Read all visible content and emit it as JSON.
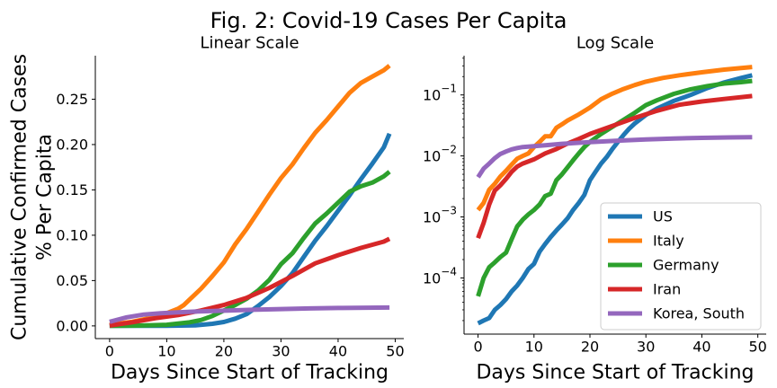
{
  "figure": {
    "title": "Fig. 2: Covid-19 Cases Per Capita"
  },
  "chart_data": [
    {
      "type": "line",
      "title": "Linear Scale",
      "xlabel": "Days Since Start of Tracking",
      "ylabel": [
        "Cumulative Confirmed Cases",
        "% Per Capita"
      ],
      "xlim": [
        -2.5,
        51.5
      ],
      "ylim": [
        -0.014,
        0.298
      ],
      "yscale": "linear",
      "xticks": [
        0,
        10,
        20,
        30,
        40,
        50
      ],
      "xtick_labels": [
        "0",
        "10",
        "20",
        "30",
        "40",
        "50"
      ],
      "yticks": [
        0,
        0.05,
        0.1,
        0.15,
        0.2,
        0.25
      ],
      "ytick_labels": [
        "0.00",
        "0.05",
        "0.10",
        "0.15",
        "0.20",
        "0.25"
      ],
      "grid": false,
      "series": [
        {
          "name": "US",
          "color": "#1f77b4",
          "x": [
            0,
            5,
            10,
            15,
            18,
            20,
            22,
            24,
            26,
            28,
            30,
            32,
            34,
            36,
            38,
            40,
            42,
            44,
            46,
            48,
            49
          ],
          "values": [
            2e-05,
            3e-05,
            0.0001,
            0.0007,
            0.0023,
            0.0043,
            0.008,
            0.013,
            0.022,
            0.032,
            0.044,
            0.058,
            0.076,
            0.094,
            0.11,
            0.127,
            0.144,
            0.162,
            0.179,
            0.197,
            0.212
          ]
        },
        {
          "name": "Italy",
          "color": "#ff7f0e",
          "x": [
            0,
            4,
            8,
            10,
            12,
            13,
            14,
            16,
            18,
            20,
            22,
            24,
            26,
            28,
            30,
            32,
            34,
            36,
            38,
            40,
            42,
            44,
            46,
            48,
            49
          ],
          "values": [
            0.0013,
            0.0046,
            0.01,
            0.014,
            0.019,
            0.023,
            0.029,
            0.041,
            0.055,
            0.07,
            0.09,
            0.107,
            0.126,
            0.145,
            0.163,
            0.178,
            0.196,
            0.213,
            0.227,
            0.242,
            0.257,
            0.268,
            0.275,
            0.282,
            0.287
          ]
        },
        {
          "name": "Germany",
          "color": "#2ca02c",
          "x": [
            0,
            5,
            10,
            14,
            16,
            18,
            20,
            22,
            24,
            26,
            28,
            30,
            32,
            34,
            36,
            38,
            40,
            42,
            44,
            46,
            48,
            49
          ],
          "values": [
            5e-05,
            0.0004,
            0.0013,
            0.004,
            0.0065,
            0.011,
            0.017,
            0.023,
            0.03,
            0.039,
            0.051,
            0.068,
            0.08,
            0.097,
            0.113,
            0.124,
            0.136,
            0.148,
            0.154,
            0.158,
            0.165,
            0.17
          ]
        },
        {
          "name": "Iran",
          "color": "#d62728",
          "x": [
            0,
            4,
            8,
            12,
            16,
            20,
            24,
            28,
            32,
            36,
            40,
            44,
            48,
            49
          ],
          "values": [
            0.0004,
            0.004,
            0.0085,
            0.012,
            0.017,
            0.023,
            0.031,
            0.042,
            0.055,
            0.069,
            0.078,
            0.086,
            0.093,
            0.096
          ]
        },
        {
          "name": "Korea, South",
          "color": "#9467bd",
          "x": [
            0,
            3,
            6,
            9,
            12,
            15,
            20,
            25,
            30,
            35,
            40,
            45,
            49
          ],
          "values": [
            0.0045,
            0.0095,
            0.0125,
            0.014,
            0.015,
            0.0158,
            0.0168,
            0.0178,
            0.0186,
            0.0193,
            0.0198,
            0.0201,
            0.0203
          ]
        }
      ]
    },
    {
      "type": "line",
      "title": "Log Scale",
      "xlabel": "Days Since Start of Tracking",
      "yscale": "log",
      "xlim": [
        -2.5,
        51.5
      ],
      "ylim": [
        1.2e-05,
        0.44
      ],
      "xticks": [
        0,
        10,
        20,
        30,
        40,
        50
      ],
      "xtick_labels": [
        "0",
        "10",
        "20",
        "30",
        "40",
        "50"
      ],
      "yticks": [
        0.0001,
        0.001,
        0.01,
        0.1
      ],
      "ytick_labels": [
        [
          "10",
          "−4"
        ],
        [
          "10",
          "−3"
        ],
        [
          "10",
          "−2"
        ],
        [
          "10",
          "−1"
        ]
      ],
      "grid": false,
      "legend": "lower-right",
      "series": [
        {
          "name": "US",
          "color": "#1f77b4",
          "x": [
            0,
            1,
            2,
            3,
            4,
            5,
            6,
            7,
            8,
            9,
            10,
            11,
            12,
            13,
            14,
            15,
            16,
            17,
            18,
            19,
            20,
            21,
            22,
            23,
            24,
            25,
            26,
            27,
            28,
            30,
            32,
            35,
            38,
            41,
            44,
            47,
            49
          ],
          "values": [
            1.8e-05,
            2e-05,
            2.2e-05,
            3e-05,
            3.6e-05,
            4.5e-05,
            6e-05,
            7.5e-05,
            0.0001,
            0.00014,
            0.00017,
            0.00027,
            0.00036,
            0.00047,
            0.0006,
            0.00075,
            0.00095,
            0.0013,
            0.0017,
            0.0023,
            0.004,
            0.0055,
            0.0075,
            0.0096,
            0.013,
            0.017,
            0.022,
            0.028,
            0.034,
            0.047,
            0.06,
            0.08,
            0.1,
            0.13,
            0.16,
            0.19,
            0.21
          ]
        },
        {
          "name": "Italy",
          "color": "#ff7f0e",
          "x": [
            0,
            1,
            2,
            3,
            4,
            5,
            6,
            7,
            8,
            9,
            10,
            11,
            12,
            13,
            14,
            15,
            16,
            18,
            20,
            22,
            24,
            26,
            28,
            30,
            33,
            36,
            40,
            44,
            49
          ],
          "values": [
            0.0013,
            0.0017,
            0.0028,
            0.0035,
            0.0046,
            0.0057,
            0.0072,
            0.009,
            0.01,
            0.011,
            0.014,
            0.017,
            0.021,
            0.021,
            0.029,
            0.033,
            0.038,
            0.048,
            0.062,
            0.085,
            0.105,
            0.125,
            0.145,
            0.165,
            0.19,
            0.21,
            0.235,
            0.26,
            0.287
          ]
        },
        {
          "name": "Germany",
          "color": "#2ca02c",
          "x": [
            0,
            1,
            2,
            3,
            4,
            5,
            6,
            7,
            8,
            9,
            10,
            11,
            12,
            13,
            14,
            15,
            16,
            17,
            18,
            19,
            20,
            22,
            24,
            26,
            28,
            30,
            32,
            35,
            38,
            41,
            44,
            47,
            49
          ],
          "values": [
            5e-05,
            0.0001,
            0.00015,
            0.00018,
            0.00022,
            0.00026,
            0.00043,
            0.0007,
            0.0009,
            0.0011,
            0.0013,
            0.0016,
            0.0022,
            0.0024,
            0.004,
            0.005,
            0.0065,
            0.0085,
            0.011,
            0.014,
            0.017,
            0.023,
            0.03,
            0.039,
            0.051,
            0.068,
            0.082,
            0.104,
            0.124,
            0.14,
            0.154,
            0.162,
            0.17
          ]
        },
        {
          "name": "Iran",
          "color": "#d62728",
          "x": [
            0,
            1,
            2,
            3,
            4,
            5,
            6,
            7,
            8,
            10,
            12,
            14,
            16,
            18,
            20,
            24,
            28,
            32,
            36,
            40,
            44,
            49
          ],
          "values": [
            0.00045,
            0.0008,
            0.0016,
            0.0027,
            0.0033,
            0.0042,
            0.0055,
            0.0067,
            0.0075,
            0.0088,
            0.011,
            0.013,
            0.016,
            0.019,
            0.023,
            0.031,
            0.042,
            0.055,
            0.069,
            0.078,
            0.086,
            0.096
          ]
        },
        {
          "name": "Korea, South",
          "color": "#9467bd",
          "x": [
            0,
            1,
            2,
            3,
            4,
            5,
            6,
            7,
            8,
            10,
            12,
            15,
            20,
            25,
            30,
            35,
            40,
            45,
            49
          ],
          "values": [
            0.0045,
            0.0062,
            0.0075,
            0.0092,
            0.0108,
            0.0118,
            0.0128,
            0.0135,
            0.014,
            0.0145,
            0.015,
            0.0158,
            0.0168,
            0.0178,
            0.0186,
            0.0193,
            0.0198,
            0.0201,
            0.0203
          ]
        }
      ]
    }
  ]
}
